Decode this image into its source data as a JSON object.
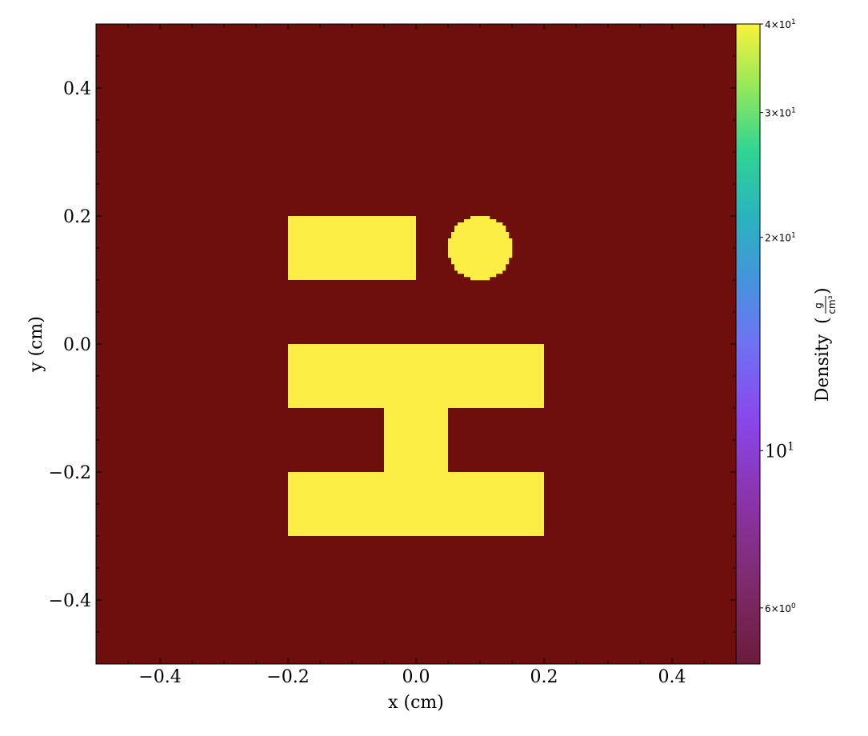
{
  "chart_data": {
    "type": "heatmap",
    "title": "",
    "xlabel": "x  (cm)",
    "ylabel": "y  (cm)",
    "xlim": [
      -0.5,
      0.5
    ],
    "ylim": [
      -0.5,
      0.5
    ],
    "x_ticks": [
      -0.4,
      -0.2,
      0.0,
      0.2,
      0.4
    ],
    "x_tick_labels": [
      "−0.4",
      "−0.2",
      "0.0",
      "0.2",
      "0.4"
    ],
    "y_ticks": [
      -0.4,
      -0.2,
      0.0,
      0.2,
      0.4
    ],
    "y_tick_labels": [
      "−0.4",
      "−0.2",
      "0.0",
      "0.2",
      "0.4"
    ],
    "background": {
      "density": 5.0,
      "color": "#6e0f0e"
    },
    "regions": [
      {
        "name": "rectangle",
        "shape": "rect",
        "x": [
          -0.2,
          0.0
        ],
        "y": [
          0.1,
          0.2
        ],
        "density": 40,
        "color": "#fcee45"
      },
      {
        "name": "circle",
        "shape": "circle",
        "center": [
          0.1,
          0.15
        ],
        "radius": 0.05,
        "density": 40,
        "color": "#fcee45"
      },
      {
        "name": "i-beam-top-flange",
        "shape": "rect",
        "x": [
          -0.2,
          0.2
        ],
        "y": [
          -0.1,
          0.0
        ],
        "density": 40,
        "color": "#fcee45"
      },
      {
        "name": "i-beam-web",
        "shape": "rect",
        "x": [
          -0.05,
          0.05
        ],
        "y": [
          -0.2,
          -0.1
        ],
        "density": 40,
        "color": "#fcee45"
      },
      {
        "name": "i-beam-bottom-flange",
        "shape": "rect",
        "x": [
          -0.2,
          0.2
        ],
        "y": [
          -0.3,
          -0.2
        ],
        "density": 40,
        "color": "#fcee45"
      }
    ],
    "colorbar": {
      "label": "Density",
      "unit_numerator": "g",
      "unit_denominator": "cm³",
      "scale": "log",
      "range": [
        5.0,
        40.0
      ],
      "colormap": "plasma-viridis",
      "ticks": [
        {
          "value": 40,
          "mantissa": "4",
          "exponent": "1"
        },
        {
          "value": 30,
          "mantissa": "3",
          "exponent": "1"
        },
        {
          "value": 20,
          "mantissa": "2",
          "exponent": "1"
        },
        {
          "value": 10,
          "mantissa": "",
          "exponent": "1"
        },
        {
          "value": 6,
          "mantissa": "6",
          "exponent": "0"
        }
      ]
    }
  }
}
